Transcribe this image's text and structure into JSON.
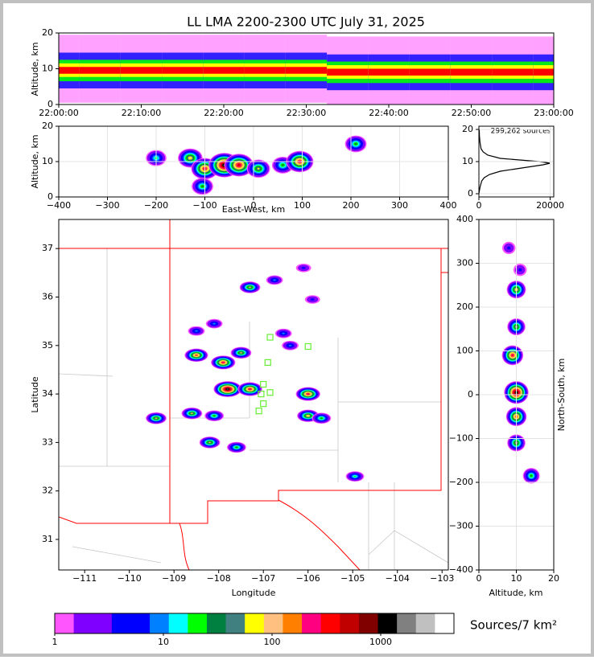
{
  "chart_data": [
    {
      "type": "time-height",
      "title": "LL LMA 2200-2300 UTC July 31, 2025",
      "ylabel": "Altitude, km",
      "x": [
        0,
        5,
        10,
        15,
        20,
        25,
        30,
        35,
        40,
        45,
        50,
        55,
        60
      ],
      "values": [
        9.5,
        9.5,
        9.5,
        9.5,
        9.5,
        9.5,
        9.5,
        9,
        9,
        9,
        9,
        9,
        9
      ],
      "xlim": [
        0,
        60
      ],
      "ylim": [
        0,
        20
      ],
      "xticks": [
        {
          "value": 0,
          "label": "22:00:00"
        },
        {
          "value": 10,
          "label": "22:10:00"
        },
        {
          "value": 20,
          "label": "22:20:00"
        },
        {
          "value": 30,
          "label": "22:30:00"
        },
        {
          "value": 40,
          "label": "22:40:00"
        },
        {
          "value": 50,
          "label": "22:50:00"
        },
        {
          "value": 60,
          "label": "23:00:00"
        }
      ],
      "yticks": [
        0,
        10,
        20
      ],
      "grid": false
    },
    {
      "type": "scatter",
      "xlabel": "East-West, km",
      "ylabel": "Altitude, km",
      "x": [
        -200,
        -130,
        -100,
        -60,
        -30,
        10,
        60,
        95,
        210,
        -105
      ],
      "y": [
        11,
        11,
        8,
        9,
        9,
        8,
        9,
        10,
        15,
        3
      ],
      "sizes": [
        20,
        100,
        300,
        1500,
        600,
        60,
        30,
        300,
        30,
        30
      ],
      "xlim": [
        -400,
        400
      ],
      "ylim": [
        0,
        20
      ],
      "xticks": [
        {
          "value": -400,
          "label": "−400"
        },
        {
          "value": -300,
          "label": "−300"
        },
        {
          "value": -200,
          "label": "−200"
        },
        {
          "value": -100,
          "label": "−100"
        },
        0,
        100,
        200,
        300,
        400
      ],
      "yticks": [
        0,
        10,
        20
      ],
      "grid": true
    },
    {
      "type": "line",
      "annotation": "299,262 sources",
      "values": [
        0,
        300,
        800,
        1500,
        3000,
        6000,
        12000,
        18000,
        20000,
        17000,
        6000,
        2500,
        1200,
        600,
        300,
        150,
        100
      ],
      "y": [
        0,
        2,
        4,
        5,
        6,
        7,
        8,
        9,
        9.5,
        10,
        11,
        12,
        13,
        14,
        16,
        18,
        20
      ],
      "color": "#000000",
      "xlim": [
        0,
        21000
      ],
      "ylim": [
        -1,
        21
      ],
      "xticks": [
        0,
        20000
      ],
      "yticks": [
        0,
        10,
        20
      ],
      "grid": true
    },
    {
      "type": "scatter",
      "xlabel": "Longitude",
      "ylabel": "Latitude",
      "x": [
        -107.3,
        -106.75,
        -106.1,
        -105.9,
        -108.1,
        -108.5,
        -107.9,
        -107.5,
        -107.8,
        -107.3,
        -106.0,
        -108.6,
        -109.4,
        -108.1,
        -106.0,
        -108.2,
        -107.6,
        -104.95,
        -106.4,
        -106.55,
        -108.5,
        -105.7
      ],
      "y": [
        36.2,
        36.35,
        36.6,
        35.95,
        35.45,
        34.8,
        34.65,
        34.85,
        34.1,
        34.1,
        34.0,
        33.6,
        33.5,
        33.55,
        33.55,
        33.0,
        32.9,
        32.3,
        35.0,
        35.25,
        35.3,
        33.5
      ],
      "sizes": [
        60,
        10,
        5,
        5,
        10,
        200,
        300,
        60,
        1500,
        300,
        300,
        60,
        60,
        30,
        100,
        60,
        30,
        20,
        10,
        10,
        10,
        30
      ],
      "stations": {
        "x": [
          -106.85,
          -106.0,
          -106.9,
          -107.0,
          -107.05,
          -107.0,
          -107.1,
          -106.85
        ],
        "y": [
          35.17,
          34.98,
          34.65,
          34.2,
          34.0,
          33.8,
          33.65,
          34.03
        ],
        "color": "#66ee33"
      },
      "xlim": [
        -111.58,
        -102.86
      ],
      "ylim": [
        30.37,
        37.6
      ],
      "xticks": [
        {
          "value": -111,
          "label": "−111"
        },
        {
          "value": -110,
          "label": "−110"
        },
        {
          "value": -109,
          "label": "−109"
        },
        {
          "value": -108,
          "label": "−108"
        },
        {
          "value": -107,
          "label": "−107"
        },
        {
          "value": -106,
          "label": "−106"
        },
        {
          "value": -105,
          "label": "−105"
        },
        {
          "value": -104,
          "label": "−104"
        },
        {
          "value": -103,
          "label": "−103"
        }
      ],
      "yticks": [
        31,
        32,
        33,
        34,
        35,
        36,
        37
      ],
      "grid": false
    },
    {
      "type": "scatter",
      "xlabel": "Altitude, km",
      "ylabel": "North-South, km",
      "x": [
        10,
        10,
        9,
        10,
        10,
        10,
        14,
        8,
        11
      ],
      "y": [
        240,
        155,
        90,
        5,
        -50,
        -110,
        -185,
        335,
        285
      ],
      "sizes": [
        100,
        60,
        300,
        1500,
        200,
        60,
        30,
        5,
        5
      ],
      "xlim": [
        0,
        20
      ],
      "ylim": [
        -400,
        400
      ],
      "xticks": [
        0,
        10,
        20
      ],
      "yticks": [
        {
          "value": -400,
          "label": "−400"
        },
        {
          "value": -300,
          "label": "−300"
        },
        {
          "value": -200,
          "label": "−200"
        },
        {
          "value": -100,
          "label": "−100"
        },
        0,
        100,
        200,
        300,
        400
      ],
      "grid": true
    },
    {
      "type": "colorbar",
      "label": "Sources/7 km²",
      "log": true,
      "clim": [
        1,
        4720
      ],
      "colors": [
        "#ff55ff",
        "#8000ff",
        "#8000ff",
        "#0000ff",
        "#0000ff",
        "#0080ff",
        "#00ffff",
        "#00ff00",
        "#008040",
        "#408080",
        "#ffff00",
        "#ffc080",
        "#ff8000",
        "#ff0080",
        "#ff0000",
        "#c00000",
        "#800000",
        "#000000",
        "#808080",
        "#c0c0c0",
        "#ffffff"
      ],
      "xticks": [
        1,
        10,
        100,
        1000
      ]
    }
  ]
}
